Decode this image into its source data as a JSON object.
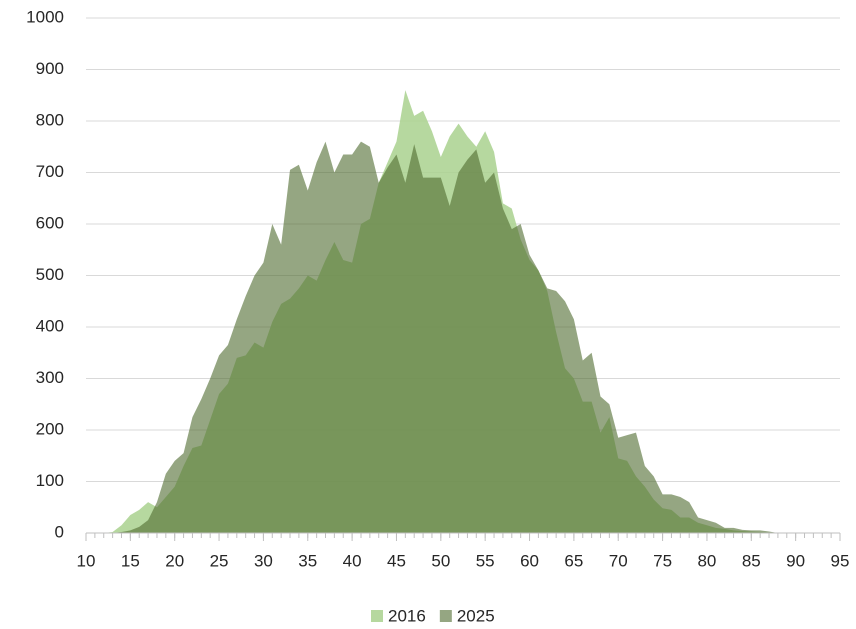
{
  "chart_data": {
    "type": "area",
    "x": [
      10,
      11,
      12,
      13,
      14,
      15,
      16,
      17,
      18,
      19,
      20,
      21,
      22,
      23,
      24,
      25,
      26,
      27,
      28,
      29,
      30,
      31,
      32,
      33,
      34,
      35,
      36,
      37,
      38,
      39,
      40,
      41,
      42,
      43,
      44,
      45,
      46,
      47,
      48,
      49,
      50,
      51,
      52,
      53,
      54,
      55,
      56,
      57,
      58,
      59,
      60,
      61,
      62,
      63,
      64,
      65,
      66,
      67,
      68,
      69,
      70,
      71,
      72,
      73,
      74,
      75,
      76,
      77,
      78,
      79,
      80,
      81,
      82,
      83,
      84,
      85,
      86,
      87,
      88,
      89,
      90,
      91,
      92,
      93,
      94,
      95
    ],
    "series": [
      {
        "name": "2016",
        "color": "#a9d18e",
        "values": [
          0,
          0,
          0,
          2,
          15,
          35,
          45,
          60,
          50,
          70,
          90,
          130,
          165,
          170,
          220,
          270,
          290,
          340,
          345,
          370,
          360,
          410,
          445,
          455,
          475,
          500,
          490,
          530,
          565,
          530,
          525,
          600,
          610,
          680,
          720,
          760,
          860,
          810,
          820,
          780,
          730,
          770,
          795,
          770,
          750,
          780,
          740,
          640,
          630,
          570,
          530,
          510,
          470,
          390,
          320,
          300,
          255,
          255,
          195,
          225,
          145,
          140,
          110,
          90,
          65,
          48,
          45,
          30,
          30,
          20,
          15,
          10,
          8,
          5,
          4,
          3,
          2,
          1,
          0,
          0,
          0,
          0,
          0,
          0,
          0,
          0
        ]
      },
      {
        "name": "2025",
        "color": "#4e6b2e",
        "values": [
          0,
          0,
          0,
          0,
          2,
          5,
          12,
          25,
          60,
          115,
          140,
          155,
          225,
          260,
          300,
          345,
          365,
          415,
          460,
          500,
          525,
          600,
          560,
          705,
          715,
          665,
          720,
          760,
          700,
          735,
          735,
          760,
          750,
          680,
          710,
          735,
          680,
          755,
          690,
          690,
          690,
          635,
          700,
          725,
          745,
          680,
          700,
          630,
          590,
          600,
          540,
          510,
          475,
          470,
          450,
          415,
          335,
          350,
          265,
          250,
          185,
          190,
          195,
          130,
          110,
          75,
          75,
          70,
          60,
          30,
          25,
          20,
          10,
          10,
          6,
          5,
          5,
          3,
          0,
          0,
          0,
          0,
          0,
          0,
          0,
          0
        ]
      }
    ],
    "xlim": [
      10,
      95
    ],
    "xticks": [
      10,
      15,
      20,
      25,
      30,
      35,
      40,
      45,
      50,
      55,
      60,
      65,
      70,
      75,
      80,
      85,
      90,
      95
    ],
    "ylim": [
      0,
      1000
    ],
    "yticks": [
      0,
      100,
      200,
      300,
      400,
      500,
      600,
      700,
      800,
      900,
      1000
    ],
    "grid": true,
    "legend": "bottom"
  }
}
